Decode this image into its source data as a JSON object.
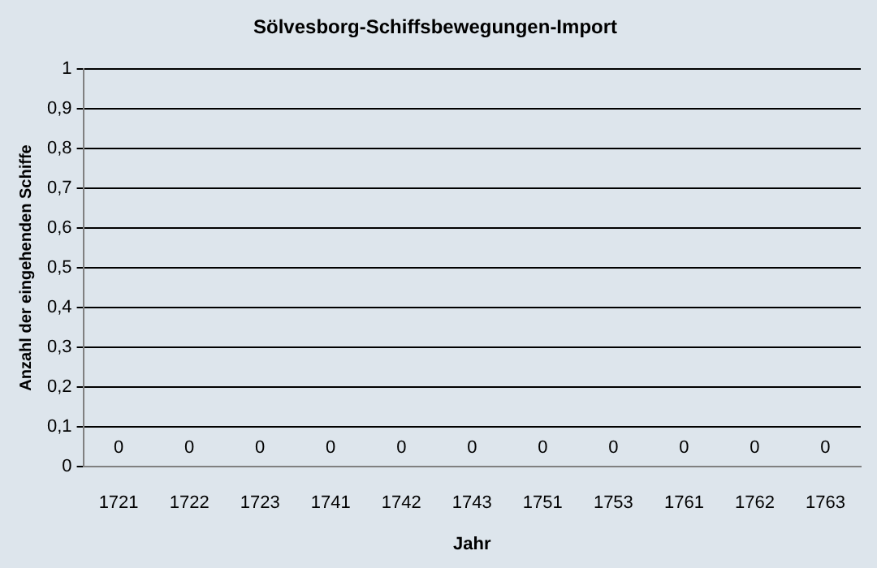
{
  "chart_data": {
    "type": "bar",
    "title": "Sölvesborg-Schiffsbewegungen-Import",
    "xlabel": "Jahr",
    "ylabel": "Anzahl der eingehenden Schiffe",
    "categories": [
      "1721",
      "1722",
      "1723",
      "1741",
      "1742",
      "1743",
      "1751",
      "1753",
      "1761",
      "1762",
      "1763"
    ],
    "values": [
      0,
      0,
      0,
      0,
      0,
      0,
      0,
      0,
      0,
      0,
      0
    ],
    "data_labels": true,
    "grid": "y",
    "legend": false,
    "ylim": [
      0,
      1
    ],
    "yticks": [
      0,
      {
        "value": 0.1,
        "label": "0,1"
      },
      {
        "value": 0.2,
        "label": "0,2"
      },
      {
        "value": 0.3,
        "label": "0,3"
      },
      {
        "value": 0.4,
        "label": "0,4"
      },
      {
        "value": 0.5,
        "label": "0,5"
      },
      {
        "value": 0.6,
        "label": "0,6"
      },
      {
        "value": 0.7,
        "label": "0,7"
      },
      {
        "value": 0.8,
        "label": "0,8"
      },
      {
        "value": 0.9,
        "label": "0,9"
      },
      1
    ]
  }
}
